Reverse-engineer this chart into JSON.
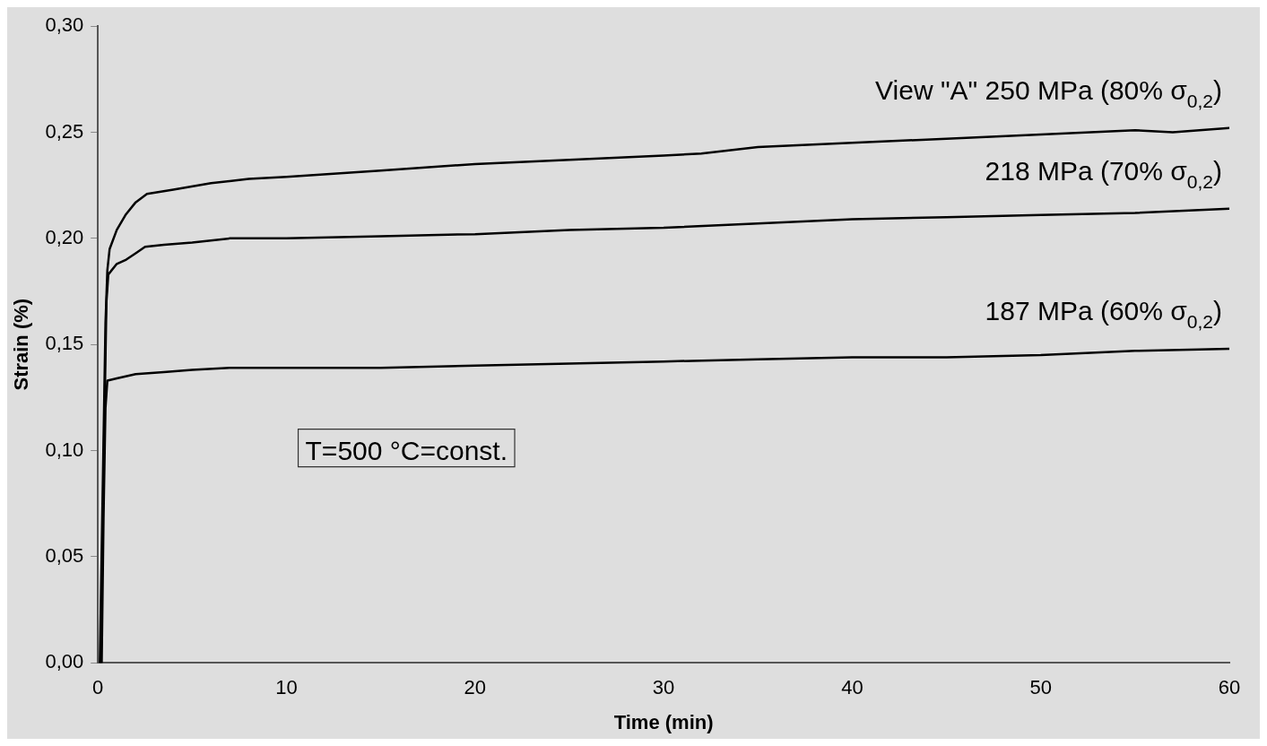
{
  "chart_data": {
    "type": "line",
    "xlabel": "Time (min)",
    "ylabel": "Strain (%)",
    "xlim": [
      0,
      60
    ],
    "xticks": [
      0,
      10,
      20,
      30,
      40,
      50,
      60
    ],
    "ylim": [
      0,
      0.3
    ],
    "yticks": [
      {
        "value": 0,
        "label": "0,00"
      },
      {
        "value": 0.05,
        "label": "0,05"
      },
      {
        "value": 0.1,
        "label": "0,10"
      },
      {
        "value": 0.15,
        "label": "0,15"
      },
      {
        "value": 0.2,
        "label": "0,20"
      },
      {
        "value": 0.25,
        "label": "0,25"
      },
      {
        "value": 0.3,
        "label": "0,30"
      }
    ],
    "grid": false,
    "legend": false,
    "marker": "none",
    "line_style": "solid",
    "annotations": [
      "T=500 °C=const."
    ],
    "series": [
      {
        "name": "View \"A\" 250 MPa (80% σ$_{0,2}$)",
        "color": "#000000",
        "x": [
          0.1,
          0.25,
          0.4,
          0.5,
          0.62,
          1.0,
          1.46,
          2.0,
          2.6,
          4,
          6,
          8,
          10,
          15,
          20,
          25,
          30,
          32,
          35,
          40,
          45,
          50,
          55,
          57,
          60
        ],
        "values": [
          0,
          0.08,
          0.16,
          0.185,
          0.195,
          0.204,
          0.211,
          0.217,
          0.221,
          0.223,
          0.226,
          0.228,
          0.229,
          0.232,
          0.235,
          0.237,
          0.239,
          0.24,
          0.243,
          0.245,
          0.247,
          0.249,
          0.251,
          0.25,
          0.252
        ]
      },
      {
        "name": "218 MPa (70% σ$_{0,2}$)",
        "color": "#000000",
        "x": [
          0.15,
          0.3,
          0.45,
          0.55,
          1.0,
          1.5,
          2.0,
          2.5,
          3.5,
          5,
          7,
          10,
          15,
          20,
          25,
          30,
          35,
          40,
          45,
          50,
          55,
          60
        ],
        "values": [
          0,
          0.09,
          0.17,
          0.183,
          0.188,
          0.19,
          0.193,
          0.196,
          0.197,
          0.198,
          0.2,
          0.2,
          0.201,
          0.202,
          0.204,
          0.205,
          0.207,
          0.209,
          0.21,
          0.211,
          0.212,
          0.214
        ]
      },
      {
        "name": "187 MPa (60% σ$_{0,2}$)",
        "color": "#000000",
        "x": [
          0.2,
          0.3,
          0.4,
          0.5,
          1.0,
          2.0,
          3.5,
          5,
          7,
          10,
          15,
          20,
          25,
          30,
          35,
          40,
          45,
          50,
          55,
          60
        ],
        "values": [
          0,
          0.07,
          0.12,
          0.133,
          0.134,
          0.136,
          0.137,
          0.138,
          0.139,
          0.139,
          0.139,
          0.14,
          0.141,
          0.142,
          0.143,
          0.144,
          0.144,
          0.145,
          0.147,
          0.148
        ]
      }
    ]
  }
}
